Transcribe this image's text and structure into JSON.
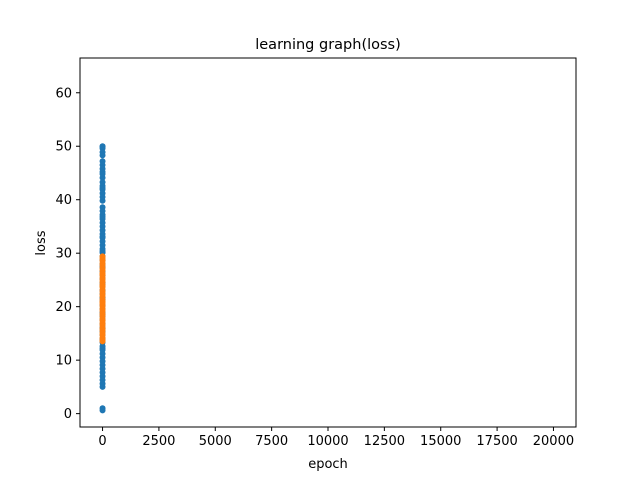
{
  "chart_data": {
    "type": "scatter",
    "title": "learning graph(loss)",
    "xlabel": "epoch",
    "ylabel": "loss",
    "xlim": [
      -1000,
      21000
    ],
    "ylim": [
      -2.5,
      66.5
    ],
    "xticks": [
      0,
      2500,
      5000,
      7500,
      10000,
      12500,
      15000,
      17500,
      20000
    ],
    "yticks": [
      0,
      10,
      20,
      30,
      40,
      50,
      60
    ],
    "grid": false,
    "legend": "none",
    "series": [
      {
        "color": "#1f77b4",
        "x": [
          0,
          0,
          0,
          0,
          0,
          0,
          0,
          0,
          0,
          0,
          0,
          0,
          0,
          0,
          0,
          0,
          0,
          0,
          0,
          0,
          0,
          0,
          0,
          0,
          0,
          0,
          0,
          0,
          0,
          0,
          0,
          0,
          0,
          0,
          0,
          0,
          0,
          0,
          0,
          0,
          0,
          0,
          0,
          0,
          0,
          0,
          0,
          0,
          0,
          0,
          0,
          0,
          0,
          0,
          0,
          0,
          0,
          0,
          0,
          0,
          0,
          0,
          0,
          0,
          0,
          0,
          0,
          0,
          0,
          0,
          0,
          0,
          0,
          0,
          0,
          0,
          0,
          0,
          0
        ],
        "y": [
          50,
          49.6,
          48.9,
          48.3,
          46.5,
          45.8,
          45.2,
          44.1,
          43.3,
          42.6,
          41.9,
          41.2,
          39.8,
          38.6,
          37.9,
          37.2,
          36.4,
          35.7,
          35.0,
          34.3,
          33.6,
          32.9,
          32.2,
          31.5,
          30.8,
          30.1,
          29.4,
          28.7,
          28.0,
          27.3,
          26.6,
          25.9,
          25.2,
          24.5,
          23.8,
          23.1,
          22.4,
          21.7,
          21.0,
          20.3,
          19.6,
          18.9,
          18.2,
          17.5,
          16.8,
          16.1,
          15.4,
          14.7,
          14.0,
          13.3,
          12.6,
          11.9,
          11.2,
          10.5,
          9.8,
          9.1,
          8.4,
          7.7,
          7.0,
          6.3,
          5.6,
          5.0,
          1.0,
          0.6,
          12.2,
          13.8,
          15.9,
          18.6,
          21.4,
          24.1,
          27.6,
          30.4,
          33.1,
          36.8,
          40.5,
          42.2,
          44.8,
          47.2,
          49.9
        ]
      },
      {
        "color": "#ff7f0e",
        "x": [
          0,
          0,
          0,
          0,
          0,
          0,
          0,
          0,
          0,
          0,
          0,
          0,
          0,
          0,
          0,
          0,
          0,
          0,
          0,
          0,
          0,
          0,
          0,
          0,
          0,
          0,
          0,
          0,
          0,
          0,
          0,
          0,
          0,
          0,
          0,
          0,
          0,
          0,
          0,
          0
        ],
        "y": [
          29.4,
          29.0,
          28.6,
          28.1,
          27.7,
          27.2,
          26.8,
          26.3,
          25.9,
          25.4,
          25.0,
          24.6,
          24.1,
          23.7,
          23.2,
          22.8,
          22.3,
          21.9,
          21.4,
          21.0,
          20.5,
          20.1,
          19.6,
          19.2,
          18.7,
          18.3,
          17.8,
          17.4,
          16.9,
          16.5,
          16.0,
          15.6,
          15.1,
          14.7,
          14.2,
          13.8,
          13.5,
          20.8,
          23.9,
          26.1
        ]
      }
    ]
  }
}
